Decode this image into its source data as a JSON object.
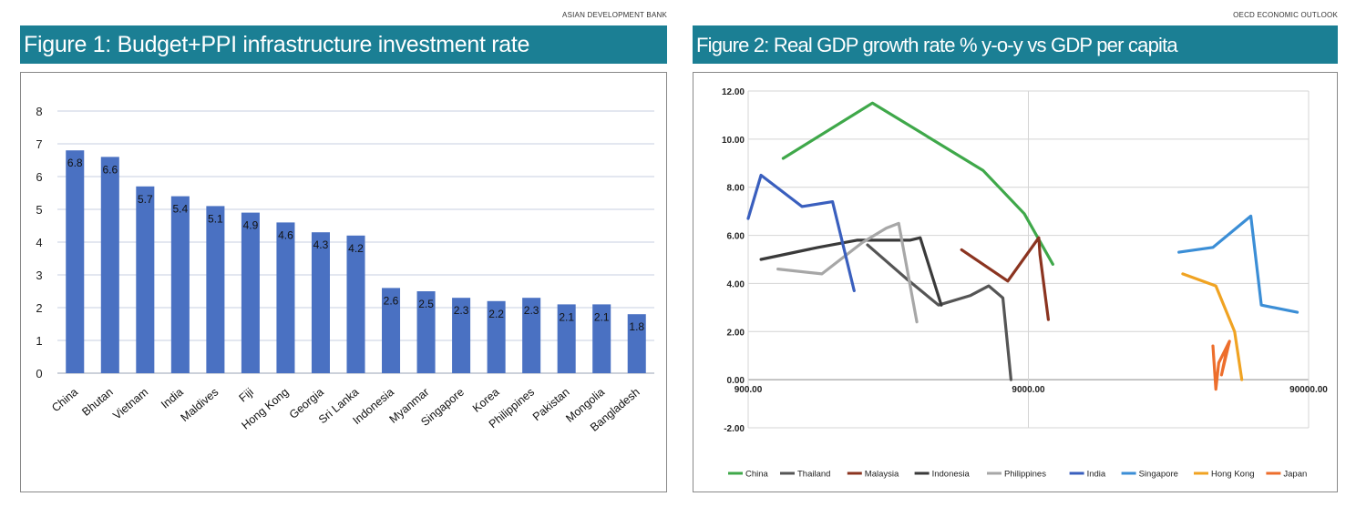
{
  "figure1": {
    "source": "ASIAN DEVELOPMENT BANK",
    "title": "Figure 1: Budget+PPI infrastructure investment rate"
  },
  "figure2": {
    "source": "OECD ECONOMIC OUTLOOK",
    "title": "Figure 2: Real GDP growth rate % y-o-y vs GDP per capita"
  },
  "colors": {
    "header": "#1b7f94",
    "bar": "#4a71c2"
  },
  "chart_data": [
    {
      "type": "bar",
      "categories": [
        "China",
        "Bhutan",
        "Vietnam",
        "India",
        "Maldives",
        "Fiji",
        "Hong Kong",
        "Georgia",
        "Sri Lanka",
        "Indonesia",
        "Myanmar",
        "Singapore",
        "Korea",
        "Philippines",
        "Pakistan",
        "Mongolia",
        "Bangladesh"
      ],
      "values": [
        6.8,
        6.6,
        5.7,
        5.4,
        5.1,
        4.9,
        4.6,
        4.3,
        4.2,
        2.6,
        2.5,
        2.3,
        2.2,
        2.3,
        2.1,
        2.1,
        1.8
      ],
      "data_labels": [
        "6.8",
        "6.6",
        "5.7",
        "5.4",
        "5.1",
        "4.9",
        "4.6",
        "4.3",
        "4.2",
        "2.6",
        "2.5",
        "2.3",
        "2.2",
        "2.3",
        "2.1",
        "2.1",
        "1.8"
      ],
      "title": "Figure 1: Budget+PPI infrastructure investment rate",
      "ylim": [
        0,
        8
      ],
      "yticks": [
        "0",
        "1",
        "2",
        "3",
        "4",
        "5",
        "6",
        "7",
        "8"
      ],
      "grid": true,
      "legend": "none"
    },
    {
      "type": "line",
      "title": "Figure 2: Real GDP growth rate % y-o-y vs GDP per capita",
      "x_scale": "log",
      "xlim": [
        900,
        90000
      ],
      "ylim": [
        -2,
        12
      ],
      "xticks": [
        "900.00",
        "9000.00",
        "90000.00"
      ],
      "yticks": [
        "-2.00",
        "0.00",
        "2.00",
        "4.00",
        "6.00",
        "8.00",
        "10.00",
        "12.00"
      ],
      "grid": true,
      "legend": "bottom",
      "series": [
        {
          "name": "China",
          "color": "#3fa84a",
          "points": [
            [
              1200,
              9.2
            ],
            [
              2500,
              11.5
            ],
            [
              6200,
              8.7
            ],
            [
              8700,
              6.9
            ],
            [
              11000,
              4.8
            ]
          ]
        },
        {
          "name": "Thailand",
          "color": "#555555",
          "points": [
            [
              2400,
              5.6
            ],
            [
              3300,
              4.2
            ],
            [
              4300,
              3.1
            ],
            [
              5600,
              3.5
            ],
            [
              6500,
              3.9
            ],
            [
              7300,
              3.4
            ],
            [
              7800,
              0.0
            ]
          ]
        },
        {
          "name": "Malaysia",
          "color": "#8b3420",
          "points": [
            [
              5200,
              5.4
            ],
            [
              7600,
              4.1
            ],
            [
              9800,
              5.9
            ],
            [
              9900,
              5.2
            ],
            [
              10600,
              2.5
            ]
          ]
        },
        {
          "name": "Indonesia",
          "color": "#3a3a3a",
          "points": [
            [
              1000,
              5.0
            ],
            [
              1600,
              5.5
            ],
            [
              2200,
              5.8
            ],
            [
              3400,
              5.8
            ],
            [
              3700,
              5.9
            ],
            [
              4400,
              3.1
            ]
          ]
        },
        {
          "name": "Philippines",
          "color": "#a7a7a7",
          "points": [
            [
              1150,
              4.6
            ],
            [
              1650,
              4.4
            ],
            [
              2300,
              5.7
            ],
            [
              2800,
              6.3
            ],
            [
              3100,
              6.5
            ],
            [
              3600,
              2.4
            ]
          ]
        },
        {
          "name": "India",
          "color": "#3a5fbe",
          "points": [
            [
              900,
              6.7
            ],
            [
              1000,
              8.5
            ],
            [
              1400,
              7.2
            ],
            [
              1800,
              7.4
            ],
            [
              2150,
              3.7
            ]
          ]
        },
        {
          "name": "Singapore",
          "color": "#3b8ed6",
          "points": [
            [
              31000,
              5.3
            ],
            [
              41000,
              5.5
            ],
            [
              56000,
              6.8
            ],
            [
              61000,
              3.1
            ],
            [
              82000,
              2.8
            ]
          ]
        },
        {
          "name": "Hong Kong",
          "color": "#f0a322",
          "points": [
            [
              32000,
              4.4
            ],
            [
              42000,
              3.9
            ],
            [
              49000,
              2.0
            ],
            [
              52000,
              0.0
            ]
          ]
        },
        {
          "name": "Japan",
          "color": "#ed6e2c",
          "points": [
            [
              41000,
              1.4
            ],
            [
              42000,
              -0.4
            ],
            [
              43000,
              0.7
            ],
            [
              47000,
              1.6
            ],
            [
              44000,
              0.2
            ],
            [
              46000,
              1.3
            ]
          ]
        }
      ]
    }
  ]
}
